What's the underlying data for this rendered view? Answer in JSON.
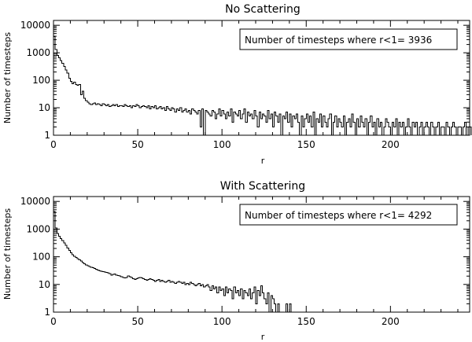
{
  "chart_data": [
    {
      "type": "bar",
      "title": "No Scattering",
      "xlabel": "r",
      "ylabel": "Number of timesteps",
      "yscale": "log",
      "xlim": [
        0,
        247
      ],
      "ylim": [
        1,
        15000
      ],
      "xticks": [
        0,
        50,
        100,
        150,
        200
      ],
      "xtick_labels": [
        "0",
        "50",
        "100",
        "150",
        "200"
      ],
      "yticks": [
        1,
        10,
        100,
        1000,
        10000
      ],
      "ytick_labels": [
        "1",
        "10",
        "100",
        "1000",
        "10000"
      ],
      "bin_width": 1,
      "annotation": "Number of timesteps where r<1= 3936",
      "values": [
        3936,
        1300,
        800,
        650,
        520,
        420,
        320,
        240,
        180,
        120,
        90,
        75,
        85,
        70,
        65,
        70,
        30,
        40,
        22,
        18,
        16,
        14,
        13,
        14,
        15,
        13,
        14,
        13,
        12,
        14,
        13,
        12,
        13,
        11,
        12,
        13,
        12,
        13,
        11,
        12,
        12,
        11,
        13,
        12,
        11,
        12,
        10,
        12,
        11,
        13,
        12,
        10,
        11,
        12,
        11,
        10,
        12,
        9,
        11,
        10,
        12,
        9,
        10,
        11,
        9,
        10,
        8,
        11,
        9,
        8,
        10,
        9,
        7,
        9,
        8,
        10,
        7,
        8,
        9,
        7,
        8,
        6,
        9,
        8,
        7,
        6,
        8,
        2,
        9,
        1,
        8,
        7,
        6,
        5,
        8,
        7,
        4,
        6,
        9,
        5,
        8,
        6,
        4,
        7,
        5,
        9,
        3,
        7,
        6,
        5,
        8,
        4,
        6,
        9,
        3,
        7,
        5,
        6,
        4,
        8,
        5,
        2,
        7,
        4,
        6,
        5,
        3,
        8,
        4,
        6,
        2,
        7,
        5,
        3,
        6,
        1,
        5,
        4,
        7,
        3,
        6,
        2,
        5,
        4,
        6,
        3,
        1,
        5,
        2,
        4,
        6,
        3,
        5,
        2,
        7,
        1,
        4,
        3,
        6,
        2,
        5,
        3,
        2,
        4,
        6,
        1,
        3,
        5,
        2,
        4,
        3,
        2,
        5,
        1,
        3,
        4,
        2,
        6,
        3,
        1,
        4,
        2,
        5,
        3,
        2,
        4,
        1,
        3,
        5,
        2,
        3,
        1,
        4,
        2,
        3,
        1,
        2,
        4,
        3,
        2,
        1,
        3,
        2,
        4,
        1,
        3,
        2,
        3,
        1,
        2,
        4,
        2,
        1,
        3,
        2,
        3,
        1,
        2,
        3,
        1,
        2,
        3,
        2,
        1,
        3,
        2,
        1,
        2,
        3,
        1,
        2,
        2,
        1,
        3,
        2,
        1,
        2,
        3,
        2,
        1,
        2,
        2,
        1,
        2,
        3,
        1,
        2,
        2
      ],
      "show_grid": false
    },
    {
      "type": "bar",
      "title": "With Scattering",
      "xlabel": "r",
      "ylabel": "Number of timesteps",
      "yscale": "log",
      "xlim": [
        0,
        247
      ],
      "ylim": [
        1,
        15000
      ],
      "xticks": [
        0,
        50,
        100,
        150,
        200
      ],
      "xtick_labels": [
        "0",
        "50",
        "100",
        "150",
        "200"
      ],
      "yticks": [
        1,
        10,
        100,
        1000,
        10000
      ],
      "ytick_labels": [
        "1",
        "10",
        "100",
        "1000",
        "10000"
      ],
      "bin_width": 1,
      "annotation": "Number of timesteps where r<1= 4292",
      "values": [
        4292,
        1100,
        700,
        560,
        450,
        380,
        320,
        260,
        210,
        170,
        140,
        120,
        105,
        95,
        85,
        78,
        70,
        62,
        55,
        50,
        47,
        45,
        42,
        40,
        38,
        35,
        33,
        31,
        30,
        29,
        28,
        27,
        26,
        25,
        22,
        23,
        24,
        22,
        21,
        20,
        19,
        18,
        17,
        18,
        20,
        19,
        18,
        16,
        15,
        16,
        17,
        18,
        17,
        16,
        15,
        14,
        15,
        16,
        15,
        14,
        13,
        14,
        15,
        13,
        14,
        13,
        12,
        13,
        14,
        12,
        13,
        12,
        11,
        12,
        13,
        12,
        11,
        12,
        10,
        11,
        10,
        12,
        11,
        10,
        9,
        10,
        11,
        9,
        10,
        8,
        9,
        10,
        8,
        6,
        9,
        7,
        8,
        5,
        8,
        6,
        7,
        4,
        8,
        5,
        7,
        6,
        3,
        8,
        5,
        6,
        4,
        7,
        3,
        6,
        5,
        4,
        7,
        3,
        5,
        8,
        2,
        6,
        4,
        9,
        5,
        3,
        2,
        5,
        1,
        4,
        3,
        2,
        1,
        2,
        1,
        1,
        1,
        1,
        2,
        1,
        2
      ]
    }
  ]
}
